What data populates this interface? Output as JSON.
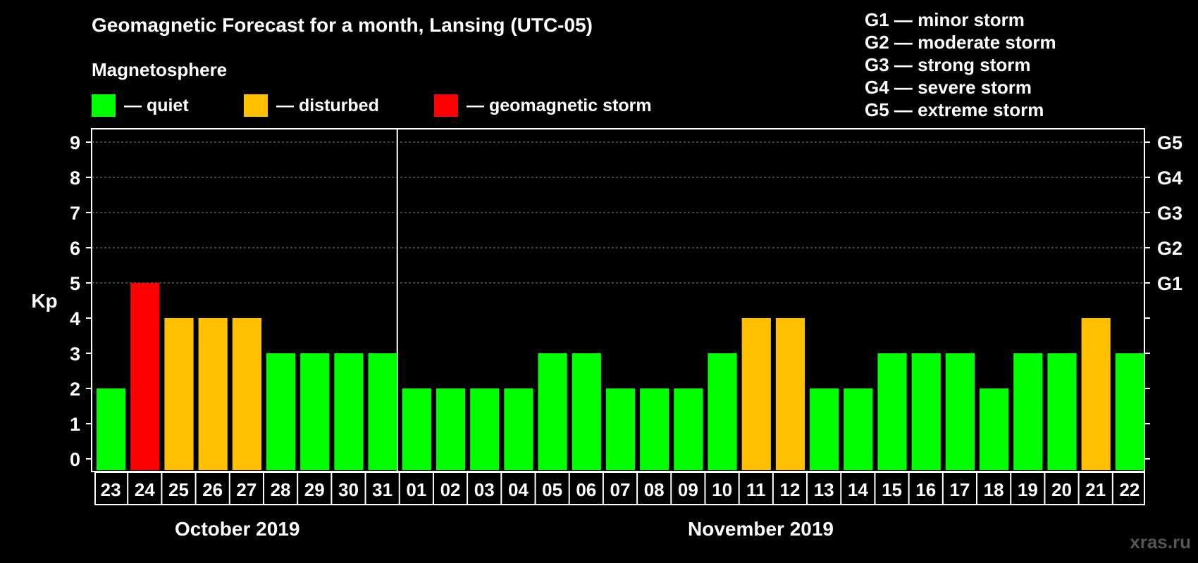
{
  "title": "Geomagnetic Forecast for a month, Lansing (UTC-05)",
  "legend": {
    "heading": "Magnetosphere",
    "items": [
      {
        "label": "— quiet",
        "color": "#00ff00"
      },
      {
        "label": "— disturbed",
        "color": "#ffc000"
      },
      {
        "label": "— geomagnetic storm",
        "color": "#ff0000"
      }
    ]
  },
  "g_scale": [
    "G1 — minor storm",
    "G2 — moderate storm",
    "G3 — strong storm",
    "G4 — severe storm",
    "G5 — extreme storm"
  ],
  "months": {
    "first": "October 2019",
    "second": "November 2019"
  },
  "watermark": "xras.ru",
  "chart_data": {
    "type": "bar",
    "ylabel": "Kp",
    "ylim": [
      0,
      9
    ],
    "yticks": [
      "0",
      "1",
      "2",
      "3",
      "4",
      "5",
      "6",
      "7",
      "8",
      "9"
    ],
    "right_labels": [
      {
        "kp": 5,
        "label": "G1"
      },
      {
        "kp": 6,
        "label": "G2"
      },
      {
        "kp": 7,
        "label": "G3"
      },
      {
        "kp": 8,
        "label": "G4"
      },
      {
        "kp": 9,
        "label": "G5"
      }
    ],
    "grid": "dashed horizontal at Kp 5–9",
    "categories": [
      "23",
      "24",
      "25",
      "26",
      "27",
      "28",
      "29",
      "30",
      "31",
      "01",
      "02",
      "03",
      "04",
      "05",
      "06",
      "07",
      "08",
      "09",
      "10",
      "11",
      "12",
      "13",
      "14",
      "15",
      "16",
      "17",
      "18",
      "19",
      "20",
      "21",
      "22"
    ],
    "values": [
      2,
      5,
      4,
      4,
      4,
      3,
      3,
      3,
      3,
      2,
      2,
      2,
      2,
      3,
      3,
      2,
      2,
      2,
      3,
      4,
      4,
      2,
      2,
      3,
      3,
      3,
      2,
      3,
      3,
      4,
      3
    ],
    "color_rule": {
      "quiet": "#00ff00",
      "disturbed": "#ffc000",
      "storm": "#ff0000"
    },
    "month_boundary_after_index": 8
  }
}
